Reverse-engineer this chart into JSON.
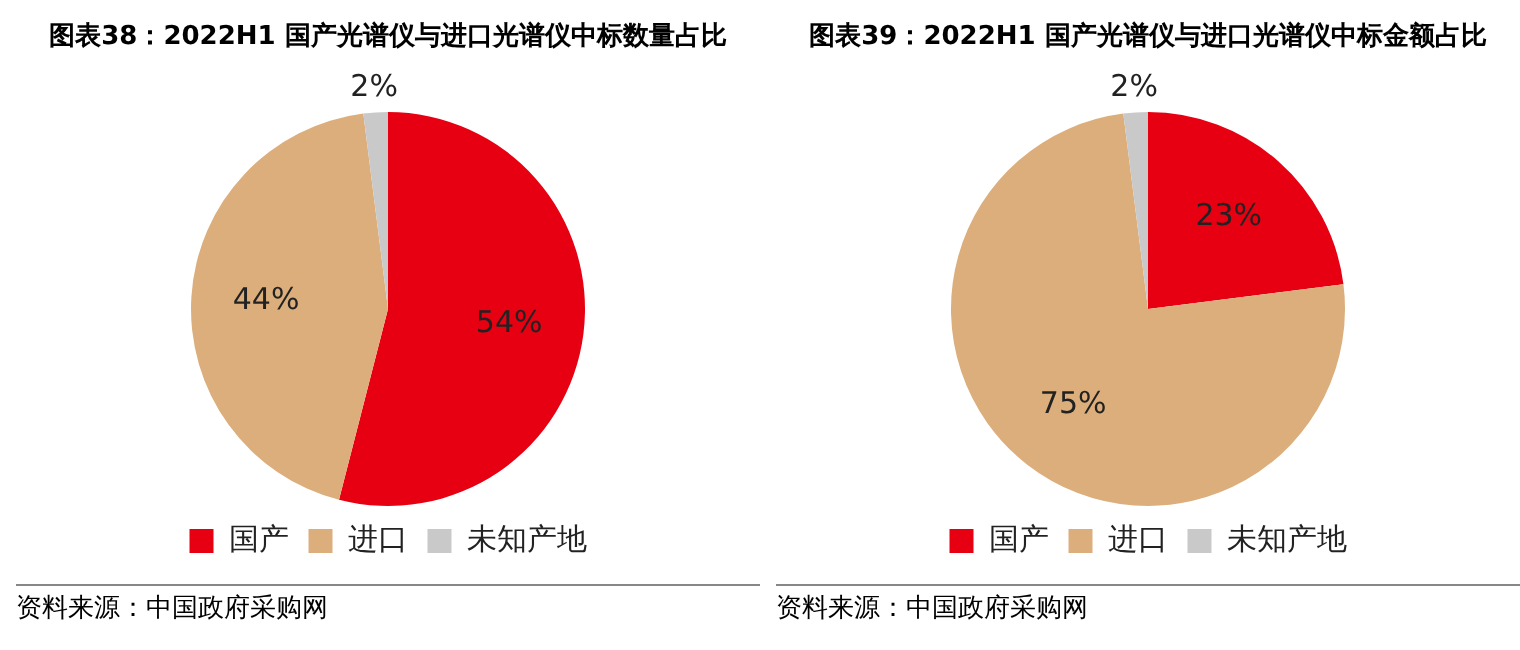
{
  "chart_data": [
    {
      "type": "pie",
      "title": "图表38：2022H1 国产光谱仪与进口光谱仪中标数量占比",
      "categories": [
        "国产",
        "进口",
        "未知产地"
      ],
      "values": [
        54,
        44,
        2
      ],
      "value_labels": [
        "54%",
        "44%",
        "2%"
      ],
      "colors": [
        "#e60012",
        "#dcae7c",
        "#c9c9c9"
      ],
      "legend": "bottom",
      "annotations": [
        "资料来源：中国政府采购网"
      ]
    },
    {
      "type": "pie",
      "title": "图表39：2022H1 国产光谱仪与进口光谱仪中标金额占比",
      "categories": [
        "国产",
        "进口",
        "未知产地"
      ],
      "values": [
        23,
        75,
        2
      ],
      "value_labels": [
        "23%",
        "75%",
        "2%"
      ],
      "colors": [
        "#e60012",
        "#dcae7c",
        "#c9c9c9"
      ],
      "legend": "bottom",
      "annotations": [
        "资料来源：中国政府采购网"
      ]
    }
  ]
}
